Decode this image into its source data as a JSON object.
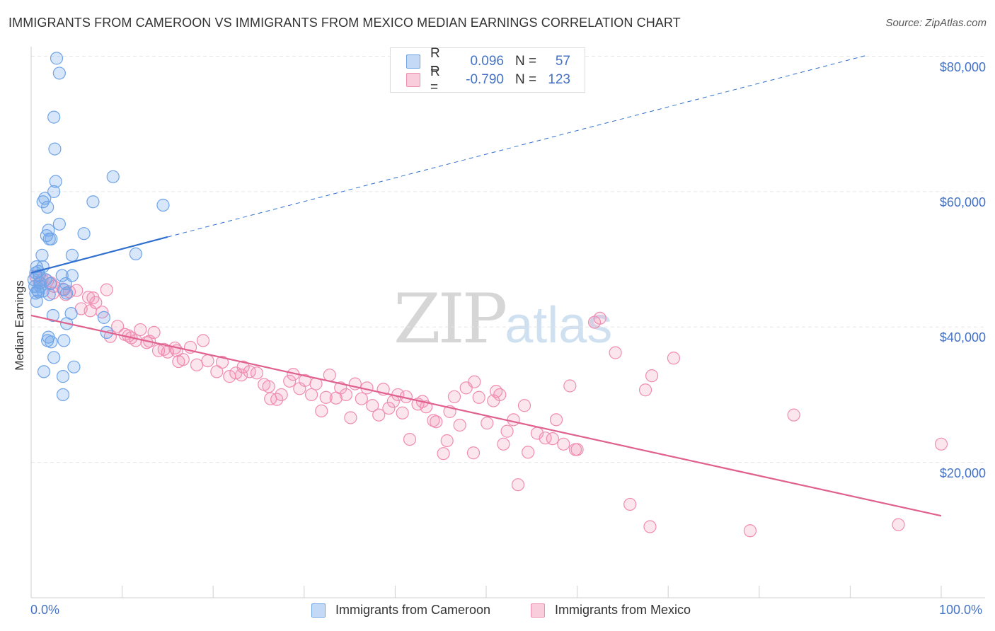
{
  "title": "IMMIGRANTS FROM CAMEROON VS IMMIGRANTS FROM MEXICO MEDIAN EARNINGS CORRELATION CHART",
  "source": "Source: ZipAtlas.com",
  "watermark": {
    "zip": "ZIP",
    "atlas": "atlas"
  },
  "legend_top": [
    {
      "r_label": "R =",
      "r_value": "0.096",
      "n_label": "N =",
      "n_value": "57"
    },
    {
      "r_label": "R =",
      "r_value": "-0.790",
      "n_label": "N =",
      "n_value": "123"
    }
  ],
  "colors": {
    "cameroon": "#6fa4e8",
    "cameroon_line": "#2f6fd0",
    "mexico": "#f08cb0",
    "mexico_line": "#e0608e",
    "axis_text": "#4472c4"
  },
  "chart_data": {
    "type": "scatter",
    "title": "IMMIGRANTS FROM CAMEROON VS IMMIGRANTS FROM MEXICO MEDIAN EARNINGS CORRELATION CHART",
    "xlabel": "",
    "ylabel": "Median Earnings",
    "x_tick_labels": [
      "0.0%",
      "100.0%"
    ],
    "y_tick_labels": [
      "$20,000",
      "$40,000",
      "$60,000",
      "$80,000"
    ],
    "y_ticks": [
      20000,
      40000,
      60000,
      80000
    ],
    "xlim": [
      0,
      100
    ],
    "ylim": [
      0,
      82000
    ],
    "grid": true,
    "legend_placement": "bottom",
    "series": [
      {
        "name": "Immigrants from Cameroon",
        "r": 0.096,
        "n": 57,
        "trend": {
          "x": [
            0,
            15
          ],
          "y": [
            48000,
            53300
          ],
          "extended_to": [
            92,
            80200
          ]
        },
        "points": [
          [
            2.8,
            79700
          ],
          [
            3.1,
            77500
          ],
          [
            2.5,
            71000
          ],
          [
            2.6,
            66300
          ],
          [
            2.7,
            61500
          ],
          [
            2.5,
            60000
          ],
          [
            1.5,
            59000
          ],
          [
            1.3,
            58500
          ],
          [
            1.8,
            57700
          ],
          [
            6.8,
            58500
          ],
          [
            9.0,
            62200
          ],
          [
            14.5,
            58000
          ],
          [
            3.1,
            55200
          ],
          [
            1.9,
            54300
          ],
          [
            1.7,
            53500
          ],
          [
            2.2,
            53000
          ],
          [
            2.0,
            53000
          ],
          [
            5.8,
            53800
          ],
          [
            11.5,
            50800
          ],
          [
            1.2,
            50600
          ],
          [
            4.5,
            50600
          ],
          [
            0.6,
            48900
          ],
          [
            1.3,
            48900
          ],
          [
            0.8,
            48200
          ],
          [
            0.5,
            48000
          ],
          [
            0.9,
            47600
          ],
          [
            3.4,
            47600
          ],
          [
            4.5,
            47600
          ],
          [
            0.3,
            47000
          ],
          [
            1.6,
            47000
          ],
          [
            1.0,
            46500
          ],
          [
            0.4,
            46000
          ],
          [
            2.1,
            46400
          ],
          [
            3.8,
            46400
          ],
          [
            0.7,
            45400
          ],
          [
            1.3,
            45300
          ],
          [
            0.5,
            45000
          ],
          [
            3.6,
            45500
          ],
          [
            3.9,
            45000
          ],
          [
            0.6,
            43800
          ],
          [
            2.4,
            41700
          ],
          [
            4.4,
            42000
          ],
          [
            3.9,
            40500
          ],
          [
            8.0,
            41400
          ],
          [
            8.3,
            39200
          ],
          [
            1.9,
            38500
          ],
          [
            1.8,
            38000
          ],
          [
            2.2,
            37800
          ],
          [
            3.6,
            38000
          ],
          [
            2.5,
            35500
          ],
          [
            4.7,
            34100
          ],
          [
            1.4,
            33400
          ],
          [
            3.5,
            32700
          ],
          [
            3.5,
            30000
          ],
          [
            1.0,
            46000
          ],
          [
            0.8,
            45200
          ],
          [
            2.0,
            44800
          ]
        ]
      },
      {
        "name": "Immigrants from Mexico",
        "r": -0.79,
        "n": 123,
        "trend": {
          "x": [
            0,
            100
          ],
          "y": [
            41700,
            12100
          ]
        },
        "points": [
          [
            0.5,
            47500
          ],
          [
            1.2,
            47000
          ],
          [
            1.8,
            46800
          ],
          [
            0.9,
            46500
          ],
          [
            2.5,
            46000
          ],
          [
            3.5,
            45600
          ],
          [
            4.2,
            45200
          ],
          [
            2.4,
            45000
          ],
          [
            5.0,
            45400
          ],
          [
            8.3,
            45500
          ],
          [
            6.3,
            44400
          ],
          [
            3.8,
            44800
          ],
          [
            7.1,
            43600
          ],
          [
            5.5,
            42700
          ],
          [
            6.5,
            42400
          ],
          [
            7.8,
            42200
          ],
          [
            9.5,
            40100
          ],
          [
            8.7,
            38600
          ],
          [
            10.3,
            38900
          ],
          [
            11.0,
            38400
          ],
          [
            12.0,
            39600
          ],
          [
            11.5,
            38000
          ],
          [
            13.0,
            37900
          ],
          [
            12.7,
            37700
          ],
          [
            13.5,
            39200
          ],
          [
            14.0,
            36500
          ],
          [
            15.0,
            36300
          ],
          [
            14.6,
            36700
          ],
          [
            15.8,
            36900
          ],
          [
            16.7,
            35200
          ],
          [
            17.5,
            37000
          ],
          [
            16.2,
            34900
          ],
          [
            18.2,
            34400
          ],
          [
            18.9,
            38000
          ],
          [
            19.4,
            35000
          ],
          [
            20.4,
            33400
          ],
          [
            21.0,
            34800
          ],
          [
            21.8,
            32700
          ],
          [
            22.5,
            33200
          ],
          [
            23.1,
            32900
          ],
          [
            23.3,
            34100
          ],
          [
            24.0,
            33400
          ],
          [
            24.8,
            33200
          ],
          [
            25.6,
            31500
          ],
          [
            26.1,
            31200
          ],
          [
            26.3,
            29400
          ],
          [
            27.0,
            29300
          ],
          [
            27.5,
            30000
          ],
          [
            28.4,
            32000
          ],
          [
            28.8,
            33000
          ],
          [
            29.5,
            30900
          ],
          [
            30.1,
            32100
          ],
          [
            30.8,
            30000
          ],
          [
            31.3,
            31600
          ],
          [
            31.9,
            27600
          ],
          [
            32.4,
            29600
          ],
          [
            32.8,
            32900
          ],
          [
            33.5,
            29500
          ],
          [
            34.0,
            31000
          ],
          [
            34.6,
            30000
          ],
          [
            35.1,
            26600
          ],
          [
            35.6,
            31600
          ],
          [
            36.3,
            29400
          ],
          [
            36.9,
            31000
          ],
          [
            37.5,
            28400
          ],
          [
            38.2,
            27000
          ],
          [
            38.7,
            30800
          ],
          [
            39.3,
            28000
          ],
          [
            39.8,
            29000
          ],
          [
            40.3,
            30000
          ],
          [
            40.8,
            27300
          ],
          [
            41.2,
            29700
          ],
          [
            41.6,
            23400
          ],
          [
            42.5,
            28600
          ],
          [
            43.0,
            29000
          ],
          [
            43.4,
            28200
          ],
          [
            44.2,
            26200
          ],
          [
            44.5,
            26000
          ],
          [
            45.3,
            21300
          ],
          [
            45.7,
            23200
          ],
          [
            46.0,
            27500
          ],
          [
            46.5,
            29700
          ],
          [
            47.1,
            25500
          ],
          [
            47.8,
            31000
          ],
          [
            48.6,
            21400
          ],
          [
            48.7,
            31900
          ],
          [
            49.2,
            29600
          ],
          [
            50.1,
            25800
          ],
          [
            50.8,
            29100
          ],
          [
            51.1,
            30500
          ],
          [
            51.5,
            30000
          ],
          [
            51.9,
            22700
          ],
          [
            52.3,
            24600
          ],
          [
            53.0,
            26300
          ],
          [
            53.5,
            16700
          ],
          [
            54.2,
            28400
          ],
          [
            54.6,
            21500
          ],
          [
            55.6,
            24300
          ],
          [
            56.5,
            23600
          ],
          [
            57.3,
            23500
          ],
          [
            57.7,
            26300
          ],
          [
            58.5,
            22700
          ],
          [
            59.8,
            21900
          ],
          [
            59.2,
            31300
          ],
          [
            60.0,
            21900
          ],
          [
            61.9,
            40700
          ],
          [
            62.5,
            41300
          ],
          [
            64.2,
            36200
          ],
          [
            65.8,
            13800
          ],
          [
            67.5,
            30700
          ],
          [
            68.2,
            32800
          ],
          [
            68.0,
            10500
          ],
          [
            70.6,
            35400
          ],
          [
            79.0,
            9900
          ],
          [
            83.8,
            27000
          ],
          [
            95.3,
            10800
          ],
          [
            100.0,
            22700
          ],
          [
            2.2,
            46500
          ],
          [
            6.8,
            44300
          ],
          [
            10.7,
            38700
          ],
          [
            16.0,
            36500
          ]
        ]
      }
    ]
  }
}
